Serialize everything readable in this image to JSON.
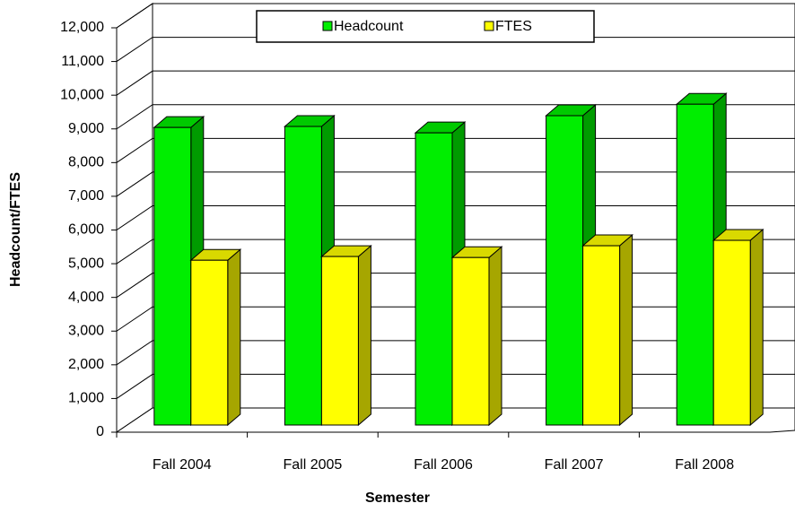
{
  "chart_data": {
    "type": "bar3d",
    "categories": [
      "Fall 2004",
      "Fall 2005",
      "Fall 2006",
      "Fall 2007",
      "Fall 2008"
    ],
    "series": [
      {
        "name": "Headcount",
        "color": "#00ee00",
        "values": [
          8830,
          8860,
          8670,
          9180,
          9520
        ]
      },
      {
        "name": "FTES",
        "color": "#ffff00",
        "values": [
          4890,
          5000,
          4970,
          5320,
          5480
        ]
      }
    ],
    "xlabel": "Semester",
    "ylabel": "Headcount/FTES",
    "ylim": [
      0,
      12000
    ],
    "yticks": [
      0,
      {
        "value": 1000,
        "label": "1,000"
      },
      {
        "value": 2000,
        "label": "2,000"
      },
      {
        "value": 3000,
        "label": "3,000"
      },
      {
        "value": 4000,
        "label": "4,000"
      },
      {
        "value": 5000,
        "label": "5,000"
      },
      {
        "value": 6000,
        "label": "6,000"
      },
      {
        "value": 7000,
        "label": "7,000"
      },
      {
        "value": 8000,
        "label": "8,000"
      },
      {
        "value": 9000,
        "label": "9,000"
      },
      {
        "value": 10000,
        "label": "10,000"
      },
      {
        "value": 11000,
        "label": "11,000"
      },
      {
        "value": 12000,
        "label": "12,000"
      }
    ],
    "grid": true,
    "legend": "top"
  }
}
